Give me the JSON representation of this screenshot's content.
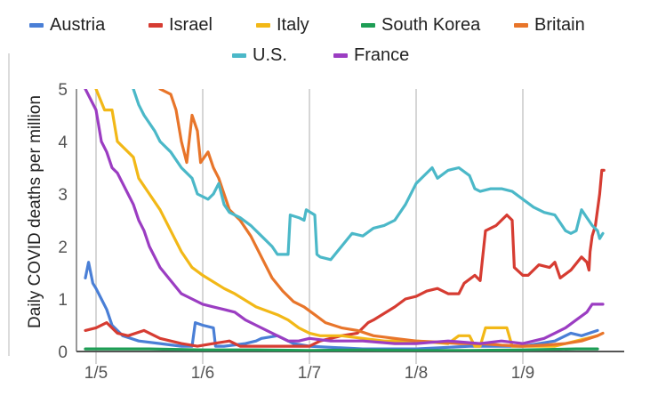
{
  "chart_data": {
    "type": "line",
    "title": "",
    "xlabel": "",
    "ylabel": "Daily COVID deaths per million",
    "x_ticks": [
      "1/5",
      "1/6",
      "1/7",
      "1/8",
      "1/9"
    ],
    "y_ticks": [
      "0",
      "1",
      "2",
      "3",
      "4",
      "5"
    ],
    "ylim": [
      0,
      5
    ],
    "xlim": [
      -0.1,
      4.75
    ],
    "x_unit": "months since 1/5 (tick labels d/m)",
    "grid": "vertical",
    "legend": "top",
    "series": [
      {
        "name": "Austria",
        "color": "#4a7fd6",
        "points": [
          [
            -0.1,
            1.4
          ],
          [
            -0.07,
            1.7
          ],
          [
            -0.03,
            1.3
          ],
          [
            0.0,
            1.2
          ],
          [
            0.05,
            1.0
          ],
          [
            0.1,
            0.8
          ],
          [
            0.15,
            0.5
          ],
          [
            0.25,
            0.3
          ],
          [
            0.4,
            0.2
          ],
          [
            0.6,
            0.15
          ],
          [
            0.8,
            0.1
          ],
          [
            0.9,
            0.1
          ],
          [
            0.93,
            0.55
          ],
          [
            1.0,
            0.5
          ],
          [
            1.1,
            0.45
          ],
          [
            1.12,
            0.1
          ],
          [
            1.2,
            0.1
          ],
          [
            1.4,
            0.15
          ],
          [
            1.5,
            0.2
          ],
          [
            1.55,
            0.25
          ],
          [
            1.7,
            0.3
          ],
          [
            1.85,
            0.15
          ],
          [
            2.0,
            0.1
          ],
          [
            2.5,
            0.05
          ],
          [
            3.0,
            0.05
          ],
          [
            3.5,
            0.1
          ],
          [
            4.0,
            0.1
          ],
          [
            4.3,
            0.2
          ],
          [
            4.45,
            0.35
          ],
          [
            4.55,
            0.3
          ],
          [
            4.7,
            0.4
          ]
        ]
      },
      {
        "name": "Israel",
        "color": "#d63c32",
        "points": [
          [
            -0.1,
            0.4
          ],
          [
            0.0,
            0.45
          ],
          [
            0.1,
            0.55
          ],
          [
            0.2,
            0.35
          ],
          [
            0.3,
            0.3
          ],
          [
            0.45,
            0.4
          ],
          [
            0.6,
            0.25
          ],
          [
            0.8,
            0.15
          ],
          [
            0.95,
            0.1
          ],
          [
            1.1,
            0.15
          ],
          [
            1.25,
            0.2
          ],
          [
            1.35,
            0.1
          ],
          [
            1.5,
            0.1
          ],
          [
            1.7,
            0.1
          ],
          [
            1.8,
            0.1
          ],
          [
            2.0,
            0.1
          ],
          [
            2.1,
            0.2
          ],
          [
            2.3,
            0.3
          ],
          [
            2.45,
            0.35
          ],
          [
            2.55,
            0.55
          ],
          [
            2.6,
            0.6
          ],
          [
            2.8,
            0.85
          ],
          [
            2.9,
            1.0
          ],
          [
            3.0,
            1.05
          ],
          [
            3.1,
            1.15
          ],
          [
            3.2,
            1.2
          ],
          [
            3.3,
            1.1
          ],
          [
            3.4,
            1.1
          ],
          [
            3.45,
            1.3
          ],
          [
            3.55,
            1.45
          ],
          [
            3.6,
            1.35
          ],
          [
            3.65,
            2.3
          ],
          [
            3.75,
            2.4
          ],
          [
            3.85,
            2.6
          ],
          [
            3.9,
            2.5
          ],
          [
            3.92,
            1.6
          ],
          [
            4.0,
            1.45
          ],
          [
            4.05,
            1.45
          ],
          [
            4.15,
            1.65
          ],
          [
            4.25,
            1.6
          ],
          [
            4.3,
            1.7
          ],
          [
            4.35,
            1.4
          ],
          [
            4.45,
            1.55
          ],
          [
            4.55,
            1.8
          ],
          [
            4.6,
            1.7
          ],
          [
            4.62,
            1.55
          ],
          [
            4.63,
            1.9
          ],
          [
            4.65,
            2.2
          ],
          [
            4.68,
            2.4
          ],
          [
            4.72,
            3.0
          ],
          [
            4.74,
            3.45
          ],
          [
            4.76,
            3.45
          ]
        ]
      },
      {
        "name": "Italy",
        "color": "#f2b817",
        "points": [
          [
            -0.1,
            6.5
          ],
          [
            0.0,
            5.0
          ],
          [
            0.08,
            4.6
          ],
          [
            0.15,
            4.6
          ],
          [
            0.2,
            4.0
          ],
          [
            0.35,
            3.7
          ],
          [
            0.4,
            3.3
          ],
          [
            0.5,
            3.0
          ],
          [
            0.6,
            2.7
          ],
          [
            0.7,
            2.3
          ],
          [
            0.8,
            1.9
          ],
          [
            0.9,
            1.6
          ],
          [
            1.0,
            1.45
          ],
          [
            1.2,
            1.2
          ],
          [
            1.3,
            1.1
          ],
          [
            1.5,
            0.85
          ],
          [
            1.7,
            0.7
          ],
          [
            1.8,
            0.6
          ],
          [
            1.9,
            0.45
          ],
          [
            2.0,
            0.35
          ],
          [
            2.1,
            0.3
          ],
          [
            2.3,
            0.3
          ],
          [
            2.5,
            0.25
          ],
          [
            2.7,
            0.2
          ],
          [
            3.0,
            0.2
          ],
          [
            3.3,
            0.15
          ],
          [
            3.4,
            0.3
          ],
          [
            3.5,
            0.3
          ],
          [
            3.55,
            0.1
          ],
          [
            3.6,
            0.1
          ],
          [
            3.65,
            0.45
          ],
          [
            3.75,
            0.45
          ],
          [
            3.85,
            0.45
          ],
          [
            3.9,
            0.1
          ],
          [
            4.0,
            0.1
          ],
          [
            4.3,
            0.1
          ],
          [
            4.5,
            0.2
          ],
          [
            4.6,
            0.25
          ],
          [
            4.7,
            0.3
          ]
        ]
      },
      {
        "name": "South Korea",
        "color": "#1e9d55",
        "points": [
          [
            -0.1,
            0.05
          ],
          [
            0.5,
            0.05
          ],
          [
            1.0,
            0.03
          ],
          [
            1.5,
            0.03
          ],
          [
            2.0,
            0.02
          ],
          [
            2.5,
            0.03
          ],
          [
            3.0,
            0.02
          ],
          [
            3.5,
            0.02
          ],
          [
            4.0,
            0.03
          ],
          [
            4.5,
            0.05
          ],
          [
            4.7,
            0.05
          ]
        ]
      },
      {
        "name": "Britain",
        "color": "#e8752a",
        "points": [
          [
            0.6,
            5.0
          ],
          [
            0.7,
            4.9
          ],
          [
            0.75,
            4.6
          ],
          [
            0.8,
            4.0
          ],
          [
            0.85,
            3.6
          ],
          [
            0.9,
            4.5
          ],
          [
            0.95,
            4.2
          ],
          [
            0.98,
            3.6
          ],
          [
            1.05,
            3.8
          ],
          [
            1.1,
            3.5
          ],
          [
            1.15,
            3.3
          ],
          [
            1.2,
            3.0
          ],
          [
            1.25,
            2.7
          ],
          [
            1.35,
            2.5
          ],
          [
            1.45,
            2.2
          ],
          [
            1.55,
            1.8
          ],
          [
            1.65,
            1.4
          ],
          [
            1.75,
            1.15
          ],
          [
            1.85,
            0.95
          ],
          [
            1.95,
            0.85
          ],
          [
            2.05,
            0.7
          ],
          [
            2.15,
            0.55
          ],
          [
            2.3,
            0.45
          ],
          [
            2.45,
            0.4
          ],
          [
            2.6,
            0.3
          ],
          [
            2.8,
            0.25
          ],
          [
            3.0,
            0.2
          ],
          [
            3.2,
            0.18
          ],
          [
            3.4,
            0.15
          ],
          [
            3.6,
            0.15
          ],
          [
            3.8,
            0.12
          ],
          [
            4.0,
            0.1
          ],
          [
            4.2,
            0.12
          ],
          [
            4.4,
            0.15
          ],
          [
            4.55,
            0.2
          ],
          [
            4.7,
            0.3
          ],
          [
            4.75,
            0.35
          ]
        ]
      },
      {
        "name": "U.S.",
        "color": "#4bb8c8",
        "points": [
          [
            0.35,
            5.0
          ],
          [
            0.4,
            4.7
          ],
          [
            0.45,
            4.5
          ],
          [
            0.55,
            4.2
          ],
          [
            0.6,
            4.0
          ],
          [
            0.7,
            3.8
          ],
          [
            0.8,
            3.5
          ],
          [
            0.9,
            3.3
          ],
          [
            0.95,
            3.0
          ],
          [
            1.05,
            2.9
          ],
          [
            1.1,
            3.0
          ],
          [
            1.15,
            3.2
          ],
          [
            1.2,
            2.8
          ],
          [
            1.25,
            2.65
          ],
          [
            1.35,
            2.55
          ],
          [
            1.45,
            2.4
          ],
          [
            1.55,
            2.2
          ],
          [
            1.65,
            2.0
          ],
          [
            1.7,
            1.85
          ],
          [
            1.8,
            1.85
          ],
          [
            1.82,
            2.6
          ],
          [
            1.9,
            2.55
          ],
          [
            1.95,
            2.5
          ],
          [
            1.97,
            2.7
          ],
          [
            2.05,
            2.6
          ],
          [
            2.07,
            1.85
          ],
          [
            2.1,
            1.8
          ],
          [
            2.2,
            1.75
          ],
          [
            2.3,
            2.0
          ],
          [
            2.4,
            2.25
          ],
          [
            2.5,
            2.2
          ],
          [
            2.6,
            2.35
          ],
          [
            2.7,
            2.4
          ],
          [
            2.8,
            2.5
          ],
          [
            2.9,
            2.8
          ],
          [
            3.0,
            3.2
          ],
          [
            3.1,
            3.4
          ],
          [
            3.15,
            3.5
          ],
          [
            3.2,
            3.3
          ],
          [
            3.3,
            3.45
          ],
          [
            3.4,
            3.5
          ],
          [
            3.5,
            3.35
          ],
          [
            3.55,
            3.1
          ],
          [
            3.6,
            3.05
          ],
          [
            3.7,
            3.1
          ],
          [
            3.8,
            3.1
          ],
          [
            3.9,
            3.05
          ],
          [
            4.0,
            2.9
          ],
          [
            4.1,
            2.75
          ],
          [
            4.2,
            2.65
          ],
          [
            4.3,
            2.6
          ],
          [
            4.35,
            2.45
          ],
          [
            4.4,
            2.3
          ],
          [
            4.45,
            2.25
          ],
          [
            4.5,
            2.3
          ],
          [
            4.55,
            2.7
          ],
          [
            4.6,
            2.55
          ],
          [
            4.65,
            2.4
          ],
          [
            4.7,
            2.3
          ],
          [
            4.72,
            2.15
          ],
          [
            4.75,
            2.25
          ]
        ]
      },
      {
        "name": "France",
        "color": "#9b3dc2",
        "points": [
          [
            -0.1,
            5.0
          ],
          [
            0.0,
            4.6
          ],
          [
            0.05,
            4.0
          ],
          [
            0.1,
            3.8
          ],
          [
            0.15,
            3.5
          ],
          [
            0.2,
            3.4
          ],
          [
            0.25,
            3.2
          ],
          [
            0.3,
            3.0
          ],
          [
            0.35,
            2.8
          ],
          [
            0.4,
            2.5
          ],
          [
            0.45,
            2.3
          ],
          [
            0.5,
            2.0
          ],
          [
            0.6,
            1.6
          ],
          [
            0.7,
            1.35
          ],
          [
            0.8,
            1.1
          ],
          [
            0.9,
            1.0
          ],
          [
            1.0,
            0.9
          ],
          [
            1.1,
            0.85
          ],
          [
            1.2,
            0.8
          ],
          [
            1.3,
            0.75
          ],
          [
            1.4,
            0.6
          ],
          [
            1.5,
            0.5
          ],
          [
            1.6,
            0.4
          ],
          [
            1.7,
            0.3
          ],
          [
            1.8,
            0.2
          ],
          [
            1.9,
            0.2
          ],
          [
            2.0,
            0.25
          ],
          [
            2.2,
            0.2
          ],
          [
            2.5,
            0.2
          ],
          [
            2.8,
            0.15
          ],
          [
            3.0,
            0.15
          ],
          [
            3.3,
            0.2
          ],
          [
            3.6,
            0.15
          ],
          [
            3.8,
            0.2
          ],
          [
            4.0,
            0.15
          ],
          [
            4.2,
            0.25
          ],
          [
            4.3,
            0.35
          ],
          [
            4.4,
            0.45
          ],
          [
            4.5,
            0.6
          ],
          [
            4.6,
            0.75
          ],
          [
            4.65,
            0.9
          ],
          [
            4.75,
            0.9
          ]
        ]
      }
    ]
  }
}
